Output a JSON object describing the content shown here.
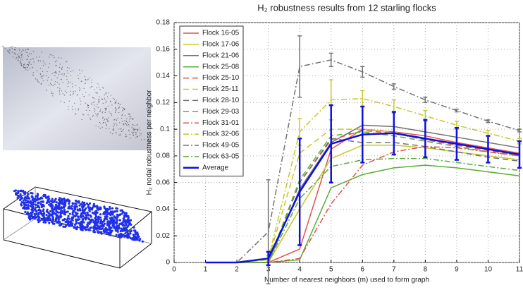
{
  "chart_data": {
    "type": "line",
    "title": "H₂ robustness results from 12 starling flocks",
    "xlabel": "Number of nearest neighbors (m) used to form graph",
    "ylabel": "H₂ nodal robustness per neighbor",
    "x": [
      1,
      2,
      3,
      4,
      5,
      6,
      7,
      8,
      9,
      10,
      11
    ],
    "xlim": [
      0,
      11
    ],
    "xticks": [
      0,
      1,
      2,
      3,
      4,
      5,
      6,
      7,
      8,
      9,
      10,
      11
    ],
    "ylim": [
      0,
      0.18
    ],
    "yticks": [
      0,
      0.02,
      0.04,
      0.06,
      0.08,
      0.1,
      0.12,
      0.14,
      0.16,
      0.18
    ],
    "grid": true,
    "legend": "upper left",
    "series": [
      {
        "name": "Flock 16-05",
        "color": "#e0524a",
        "dash": "solid",
        "values": [
          0,
          0,
          0,
          0.01,
          0.085,
          0.1,
          0.098,
          0.095,
          0.09,
          0.086,
          0.082
        ]
      },
      {
        "name": "Flock 17-06",
        "color": "#c6c72a",
        "dash": "solid",
        "values": [
          0,
          0,
          0,
          0.04,
          0.078,
          0.088,
          0.088,
          0.086,
          0.083,
          0.08,
          0.077
        ]
      },
      {
        "name": "Flock 21-06",
        "color": "#727272",
        "dash": "solid",
        "values": [
          0,
          0,
          0,
          0.055,
          0.09,
          0.103,
          0.102,
          0.098,
          0.094,
          0.09,
          0.086
        ]
      },
      {
        "name": "Flock 25-08",
        "color": "#5aac34",
        "dash": "solid",
        "values": [
          0,
          0,
          0,
          0.002,
          0.056,
          0.066,
          0.071,
          0.073,
          0.071,
          0.068,
          0.065
        ]
      },
      {
        "name": "Flock 25-10",
        "color": "#e0524a",
        "dash": "dashed",
        "values": [
          0,
          0,
          0,
          0.06,
          0.092,
          0.099,
          0.097,
          0.092,
          0.088,
          0.084,
          0.08
        ]
      },
      {
        "name": "Flock 25-11",
        "color": "#c6c72a",
        "dash": "dashed",
        "values": [
          0,
          0,
          0.002,
          0.082,
          0.1,
          0.1,
          0.098,
          0.093,
          0.089,
          0.085,
          0.081
        ]
      },
      {
        "name": "Flock 28-10",
        "color": "#727272",
        "dash": "dashed",
        "values": [
          0,
          0,
          0,
          0.06,
          0.093,
          0.09,
          0.09,
          0.087,
          0.083,
          0.079,
          0.076
        ]
      },
      {
        "name": "Flock 29-03",
        "color": "#5aac34",
        "dash": "dashed",
        "values": [
          0,
          0,
          0,
          0.062,
          0.095,
          0.098,
          0.095,
          0.091,
          0.087,
          0.083,
          0.08
        ]
      },
      {
        "name": "Flock 31-01",
        "color": "#e0524a",
        "dash": "dashdot",
        "values": [
          0,
          0,
          0,
          0.003,
          0.044,
          0.073,
          0.083,
          0.087,
          0.086,
          0.083,
          0.08
        ]
      },
      {
        "name": "Flock 32-06",
        "color": "#c6c72a",
        "dash": "dashdot",
        "values": [
          0,
          0,
          0.003,
          0.098,
          0.122,
          0.123,
          0.117,
          0.11,
          0.103,
          0.097,
          0.091
        ],
        "errors": [
          0,
          0,
          0.002,
          0.01,
          0.015,
          0.006,
          0.005,
          0.004,
          0.003,
          0.002,
          0.002
        ]
      },
      {
        "name": "Flock 49-05",
        "color": "#727272",
        "dash": "dashdot",
        "values": [
          0,
          0,
          0.023,
          0.147,
          0.152,
          0.143,
          0.132,
          0.122,
          0.114,
          0.106,
          0.099
        ],
        "errors": [
          0,
          0,
          0.039,
          0.023,
          0.005,
          0.004,
          0.002,
          0.002,
          0.001,
          0.001,
          0.001
        ]
      },
      {
        "name": "Flock 63-05",
        "color": "#5aac34",
        "dash": "dashdot",
        "values": [
          0,
          0,
          0,
          0.048,
          0.072,
          0.077,
          0.078,
          0.078,
          0.075,
          0.072,
          0.069
        ]
      },
      {
        "name": "Average",
        "color": "#1010e0",
        "dash": "solid",
        "width": 2.5,
        "values": [
          0,
          0,
          0.003,
          0.053,
          0.089,
          0.096,
          0.097,
          0.093,
          0.089,
          0.085,
          0.081
        ],
        "errors": [
          0,
          0,
          0.005,
          0.04,
          0.029,
          0.021,
          0.016,
          0.014,
          0.012,
          0.01,
          0.01
        ]
      }
    ]
  }
}
